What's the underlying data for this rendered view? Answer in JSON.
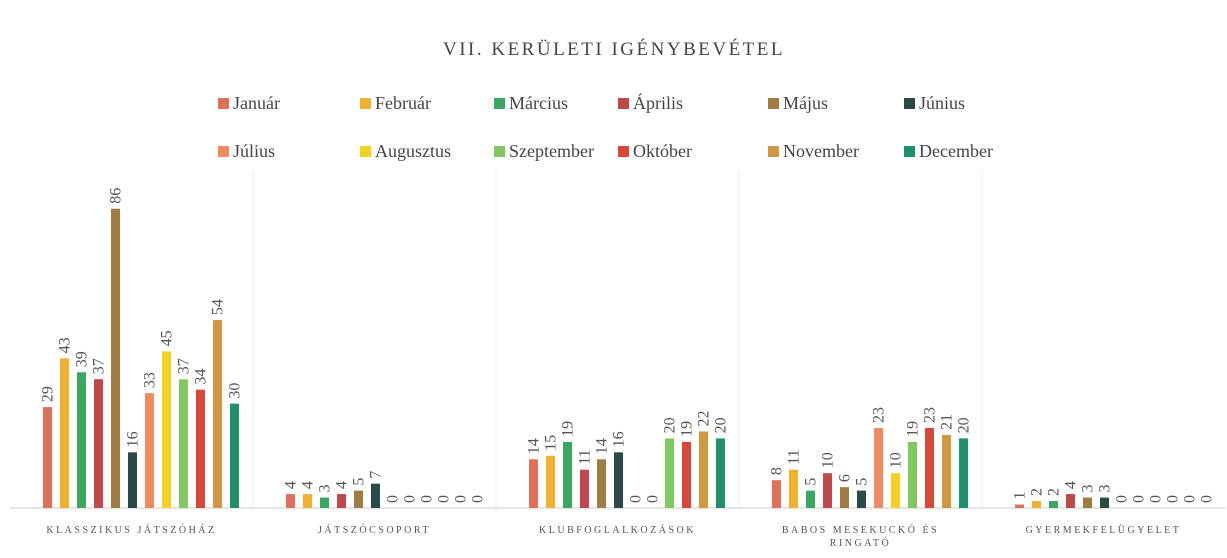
{
  "chart_data": {
    "type": "bar",
    "title": "VII. KERÜLETI IGÉNYBEVÉTEL",
    "categories": [
      "KLASSZIKUS JÁTSZÓHÁZ",
      "JÁTSZÓCSOPORT",
      "KLUBFOGLALKOZÁSOK",
      "BABOS MESEKUCKÓ ÉS RINGATÓ",
      "GYERMEKFELÜGYELET"
    ],
    "series": [
      {
        "name": "Január",
        "color": "#e0705a",
        "values": [
          29,
          4,
          14,
          8,
          1
        ]
      },
      {
        "name": "Február",
        "color": "#f0b030",
        "values": [
          43,
          4,
          15,
          11,
          2
        ]
      },
      {
        "name": "Március",
        "color": "#3aa860",
        "values": [
          39,
          3,
          19,
          5,
          2
        ]
      },
      {
        "name": "Április",
        "color": "#c04848",
        "values": [
          37,
          4,
          11,
          10,
          4
        ]
      },
      {
        "name": "Május",
        "color": "#a07c40",
        "values": [
          86,
          5,
          14,
          6,
          3
        ]
      },
      {
        "name": "Június",
        "color": "#2a4a48",
        "values": [
          16,
          7,
          16,
          5,
          3
        ]
      },
      {
        "name": "Július",
        "color": "#f08a60",
        "values": [
          33,
          0,
          0,
          23,
          0
        ]
      },
      {
        "name": "Augusztus",
        "color": "#f5d020",
        "values": [
          45,
          0,
          0,
          10,
          0
        ]
      },
      {
        "name": "Szeptember",
        "color": "#80c860",
        "values": [
          37,
          0,
          20,
          19,
          0
        ]
      },
      {
        "name": "Október",
        "color": "#d84838",
        "values": [
          34,
          0,
          19,
          23,
          0
        ]
      },
      {
        "name": "November",
        "color": "#d09840",
        "values": [
          54,
          0,
          22,
          21,
          0
        ]
      },
      {
        "name": "December",
        "color": "#20906a",
        "values": [
          30,
          0,
          20,
          20,
          0
        ]
      }
    ],
    "ylim": [
      0,
      100
    ]
  }
}
